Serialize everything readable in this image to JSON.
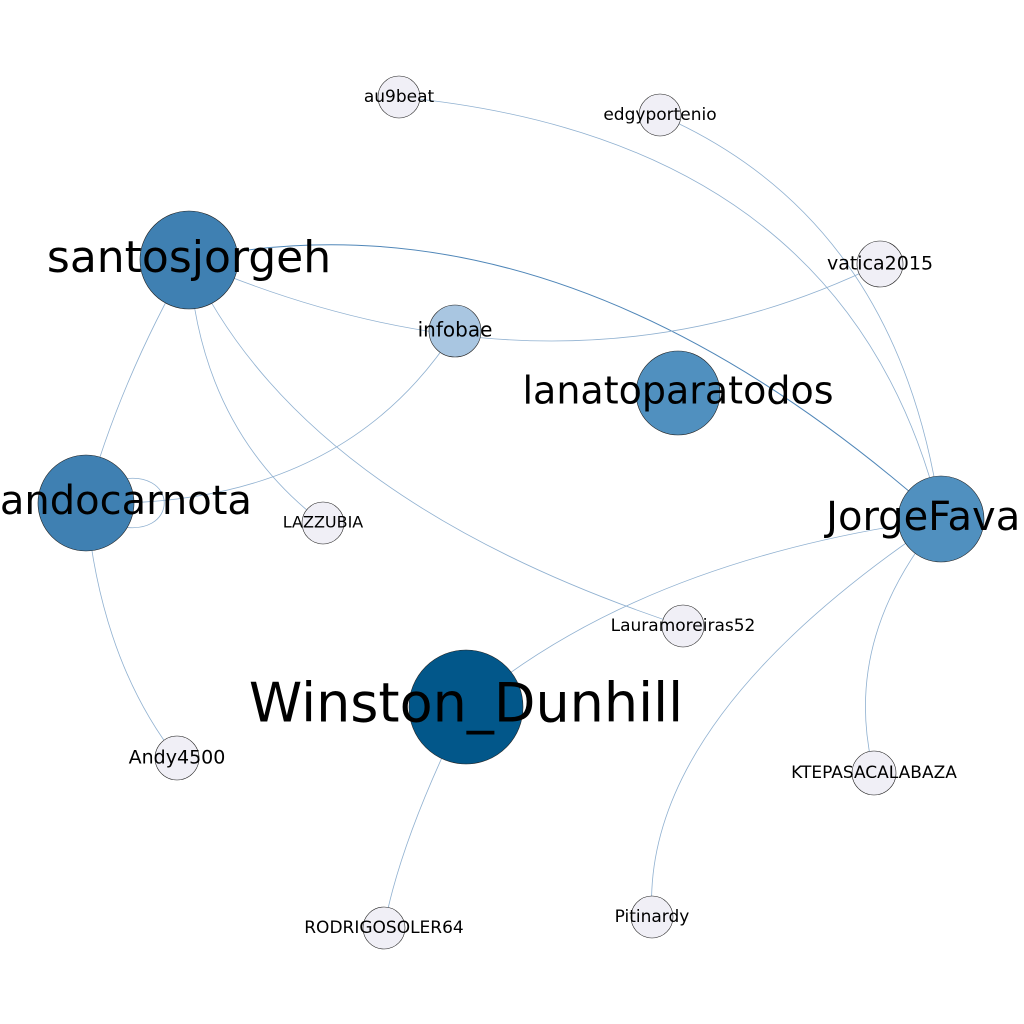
{
  "graph": {
    "colors": {
      "edge": "#8fb0d0",
      "edge_strong": "#4f86b8",
      "node_top": "#02578a",
      "node_high": "#3f80b2",
      "node_mid": "#5090bf",
      "node_low": "#a9c6e1",
      "node_leaf": "#f0eff6"
    },
    "nodes": [
      {
        "id": "au9beat",
        "label": "au9beat",
        "tier": "leaf"
      },
      {
        "id": "edgyportenio",
        "label": "edgyportenio",
        "tier": "leaf"
      },
      {
        "id": "santosjorgeh",
        "label": "santosjorgeh",
        "tier": "high"
      },
      {
        "id": "vatica2015",
        "label": "vatica2015",
        "tier": "leaf"
      },
      {
        "id": "infobae",
        "label": "infobae",
        "tier": "low"
      },
      {
        "id": "lanatoparatodos",
        "label": "lanatoparatodos",
        "tier": "mid"
      },
      {
        "id": "fernandocarnota",
        "label": "fernandocarnota",
        "tier": "high"
      },
      {
        "id": "LAZZUBIA",
        "label": "LAZZUBIA",
        "tier": "leaf"
      },
      {
        "id": "JorgeFavalo",
        "label": "JorgeFavalo",
        "tier": "mid"
      },
      {
        "id": "Lauramoreiras52",
        "label": "Lauramoreiras52",
        "tier": "leaf"
      },
      {
        "id": "Winston_Dunhill",
        "label": "Winston_Dunhill",
        "tier": "top"
      },
      {
        "id": "Andy4500",
        "label": "Andy4500",
        "tier": "leaf"
      },
      {
        "id": "KTEPASACALABAZA",
        "label": "KTEPASACALABAZA",
        "tier": "leaf"
      },
      {
        "id": "Pitinardy",
        "label": "Pitinardy",
        "tier": "leaf"
      },
      {
        "id": "RODRIGOSOLER64",
        "label": "RODRIGOSOLER64",
        "tier": "leaf"
      }
    ],
    "edges": [
      {
        "source": "santosjorgeh",
        "target": "JorgeFavalo",
        "strong": true
      },
      {
        "source": "santosjorgeh",
        "target": "vatica2015"
      },
      {
        "source": "santosjorgeh",
        "target": "fernandocarnota"
      },
      {
        "source": "santosjorgeh",
        "target": "LAZZUBIA"
      },
      {
        "source": "santosjorgeh",
        "target": "Lauramoreiras52"
      },
      {
        "source": "au9beat",
        "target": "JorgeFavalo"
      },
      {
        "source": "edgyportenio",
        "target": "JorgeFavalo"
      },
      {
        "source": "infobae",
        "target": "fernandocarnota"
      },
      {
        "source": "fernandocarnota",
        "target": "fernandocarnota"
      },
      {
        "source": "fernandocarnota",
        "target": "Andy4500"
      },
      {
        "source": "Winston_Dunhill",
        "target": "JorgeFavalo"
      },
      {
        "source": "Winston_Dunhill",
        "target": "RODRIGOSOLER64"
      },
      {
        "source": "JorgeFavalo",
        "target": "KTEPASACALABAZA"
      },
      {
        "source": "JorgeFavalo",
        "target": "Pitinardy"
      }
    ]
  }
}
